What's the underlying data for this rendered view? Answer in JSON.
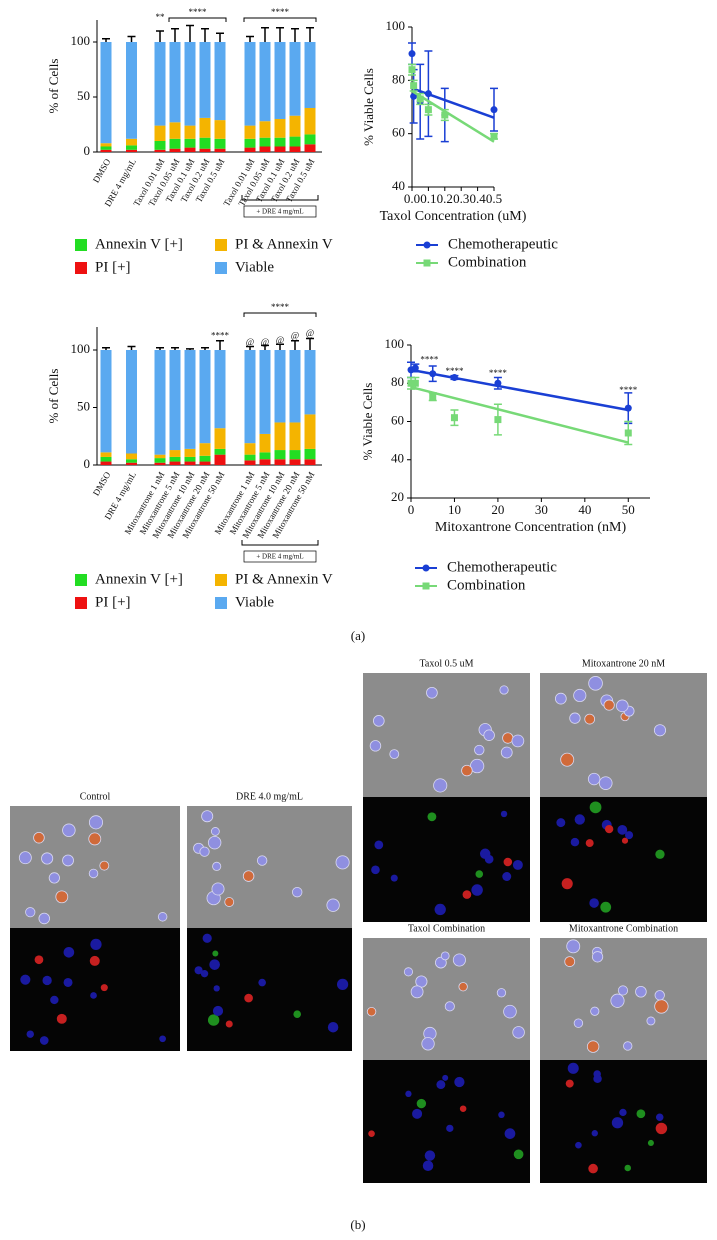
{
  "chart_data": [
    {
      "type": "stacked_bar",
      "ylabel": "% of Cells",
      "categories": [
        "DMSO",
        "DRE 4 mg/mL",
        "Taxol 0.01 uM",
        "Taxol 0.05 uM",
        "Taxol 0.1 uM",
        "Taxol 0.2 uM",
        "Taxol 0.5 uM",
        "Taxol 0.01 uM",
        "Taxol 0.05 uM",
        "Taxol 0.1 uM",
        "Taxol 0.2 uM",
        "Taxol 0.5 uM"
      ],
      "series": [
        {
          "name": "PI [+]",
          "color": "#ee1111",
          "values": [
            2,
            2,
            2,
            3,
            4,
            3,
            3,
            4,
            5,
            5,
            5,
            7
          ]
        },
        {
          "name": "Annexin V [+]",
          "color": "#22dd22",
          "values": [
            3,
            4,
            8,
            9,
            8,
            10,
            9,
            8,
            8,
            8,
            9,
            9
          ]
        },
        {
          "name": "PI & Annexin V",
          "color": "#f4b400",
          "values": [
            3,
            6,
            14,
            15,
            12,
            18,
            17,
            12,
            15,
            17,
            19,
            24
          ]
        },
        {
          "name": "Viable",
          "color": "#5aa9f0",
          "values": [
            92,
            88,
            76,
            73,
            76,
            69,
            71,
            76,
            72,
            70,
            67,
            60
          ],
          "errors": [
            3,
            5,
            10,
            12,
            15,
            12,
            8,
            5,
            13,
            13,
            12,
            13
          ]
        }
      ],
      "ylim": [
        0,
        120
      ],
      "yticks": [
        0,
        50,
        100
      ],
      "annotations": [
        "**",
        "****",
        "****"
      ],
      "bracket_label": "+ DRE 4 mg/mL"
    },
    {
      "type": "line",
      "xlabel": "Taxol Concentration (uM)",
      "ylabel": "% Viable Cells",
      "x": [
        0,
        0.01,
        0.05,
        0.1,
        0.2,
        0.5
      ],
      "trend_x": [
        0,
        0.5
      ],
      "series": [
        {
          "name": "Chemotherapeutic",
          "color": "#1a3fd4",
          "marker": "circle",
          "values": [
            90,
            74,
            72,
            75,
            67,
            69
          ],
          "errors": [
            4,
            10,
            14,
            16,
            10,
            8
          ],
          "trend": [
            77,
            66
          ]
        },
        {
          "name": "Combination",
          "color": "#77d977",
          "marker": "square",
          "values": [
            84,
            78,
            73,
            69,
            67,
            59
          ],
          "errors": [
            2,
            2,
            2,
            2,
            2,
            1
          ],
          "trend": [
            76,
            57
          ]
        }
      ],
      "xlim": [
        0,
        0.5
      ],
      "xticks": [
        {
          "value": 0,
          "label": "0.0"
        },
        0.1,
        0.2,
        0.3,
        0.4,
        0.5
      ],
      "ylim": [
        40,
        100
      ],
      "yticks": [
        40,
        60,
        80,
        100
      ]
    },
    {
      "type": "stacked_bar",
      "ylabel": "% of Cells",
      "categories": [
        "DMSO",
        "DRE 4 mg/mL",
        "Mitoxantrone 1 nM",
        "Mitoxantrone 5 nM",
        "Mitoxantrone 10 nM",
        "Mitoxantrone 20 nM",
        "Mitoxantrone 50 nM",
        "Mitoxantrone 1 nM",
        "Mitoxantrone 5 nM",
        "Mitoxantrone 10 nM",
        "Mitoxantrone 20 nM",
        "Mitoxantrone 50 nM"
      ],
      "series": [
        {
          "name": "PI [+]",
          "color": "#ee1111",
          "values": [
            3,
            2,
            2,
            3,
            3,
            3,
            9,
            4,
            5,
            5,
            5,
            5
          ]
        },
        {
          "name": "Annexin V [+]",
          "color": "#22dd22",
          "values": [
            4,
            3,
            4,
            4,
            4,
            5,
            5,
            5,
            6,
            8,
            8,
            9
          ]
        },
        {
          "name": "PI & Annexin V",
          "color": "#f4b400",
          "values": [
            4,
            5,
            3,
            6,
            7,
            11,
            18,
            10,
            16,
            24,
            24,
            30
          ]
        },
        {
          "name": "Viable",
          "color": "#5aa9f0",
          "values": [
            89,
            90,
            91,
            87,
            86,
            81,
            68,
            81,
            73,
            63,
            63,
            56
          ],
          "errors": [
            2,
            3,
            2,
            2,
            1,
            2,
            8,
            3,
            4,
            5,
            8,
            10
          ]
        }
      ],
      "ylim": [
        0,
        120
      ],
      "yticks": [
        0,
        50,
        100
      ],
      "annotations": [
        "****",
        "****",
        "@",
        "@",
        "@",
        "@",
        "@"
      ],
      "bracket_label": "+ DRE 4 mg/mL"
    },
    {
      "type": "line",
      "xlabel": "Mitoxantrone Concentration (nM)",
      "ylabel": "% Viable Cells",
      "x": [
        0,
        1,
        5,
        10,
        20,
        50
      ],
      "trend_x": [
        0,
        50
      ],
      "series": [
        {
          "name": "Chemotherapeutic",
          "color": "#1a3fd4",
          "marker": "circle",
          "values": [
            87,
            88,
            85,
            83,
            80,
            67
          ],
          "errors": [
            4,
            2,
            4,
            1,
            3,
            8
          ],
          "trend": [
            87,
            66
          ]
        },
        {
          "name": "Combination",
          "color": "#77d977",
          "marker": "square",
          "values": [
            80,
            80,
            73,
            62,
            61,
            54
          ],
          "errors": [
            3,
            3,
            2,
            4,
            8,
            6
          ],
          "trend": [
            78,
            49
          ]
        }
      ],
      "xlim": [
        0,
        55
      ],
      "xticks": [
        0,
        10,
        20,
        30,
        40,
        50
      ],
      "ylim": [
        20,
        100
      ],
      "yticks": [
        20,
        40,
        60,
        80,
        100
      ],
      "annotations": [
        "****",
        "****",
        "****",
        "****"
      ]
    }
  ],
  "panel_labels": [
    "(a)",
    "(b)"
  ],
  "images": [
    {
      "title": "Control"
    },
    {
      "title": "DRE 4.0 mg/mL"
    },
    {
      "title": "Taxol 0.5 uM"
    },
    {
      "title": "Mitoxantrone 20 nM"
    },
    {
      "title": "Taxol Combination"
    },
    {
      "title": "Mitoxantrone Combination"
    }
  ]
}
